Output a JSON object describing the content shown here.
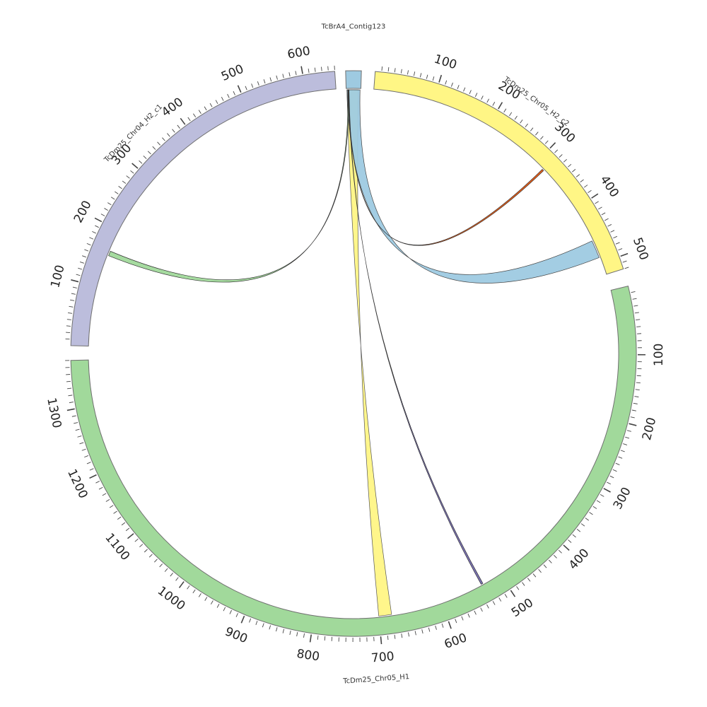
{
  "chart_data": {
    "type": "chord",
    "sequences": [
      {
        "id": "contig",
        "name": "TcBrA4_Contig123",
        "length": 18,
        "color": "#9ecae1",
        "show_ticks": false
      },
      {
        "id": "chr05h2",
        "name": "TcDm25_Chr05_H2_c2",
        "length": 520,
        "color": "#fff685",
        "show_ticks": true
      },
      {
        "id": "chr05h1",
        "name": "TcDm25_Chr05_H1",
        "length": 1370,
        "color": "#a1d99b",
        "show_ticks": true
      },
      {
        "id": "chr04h2",
        "name": "TcDm25_Chr04_H2_c1",
        "length": 650,
        "color": "#bcbddc",
        "show_ticks": true
      }
    ],
    "tick_interval": 100,
    "minor_tick_interval": 10,
    "links": [
      {
        "from": {
          "seq": "contig",
          "start": 1,
          "end": 15
        },
        "to": {
          "seq": "chr05h1",
          "start": 680,
          "end": 700
        },
        "color": "#fff685",
        "edge": "#555555"
      },
      {
        "from": {
          "seq": "contig",
          "start": 1,
          "end": 17
        },
        "to": {
          "seq": "chr05h2",
          "start": 460,
          "end": 490
        },
        "color": "#9ecae1",
        "edge": "#444444"
      },
      {
        "from": {
          "seq": "contig",
          "start": 2,
          "end": 3
        },
        "to": {
          "seq": "chr04h2",
          "start": 155,
          "end": 163
        },
        "color": "#a1d99b",
        "edge": "#333333"
      },
      {
        "from": {
          "seq": "contig",
          "start": 2,
          "end": 2.5
        },
        "to": {
          "seq": "chr05h2",
          "start": 315,
          "end": 318
        },
        "color": "#e6550d",
        "edge": "#333333"
      },
      {
        "from": {
          "seq": "contig",
          "start": 3,
          "end": 3.5
        },
        "to": {
          "seq": "chr05h1",
          "start": 530,
          "end": 533
        },
        "color": "#756bb1",
        "edge": "#333333"
      }
    ]
  }
}
